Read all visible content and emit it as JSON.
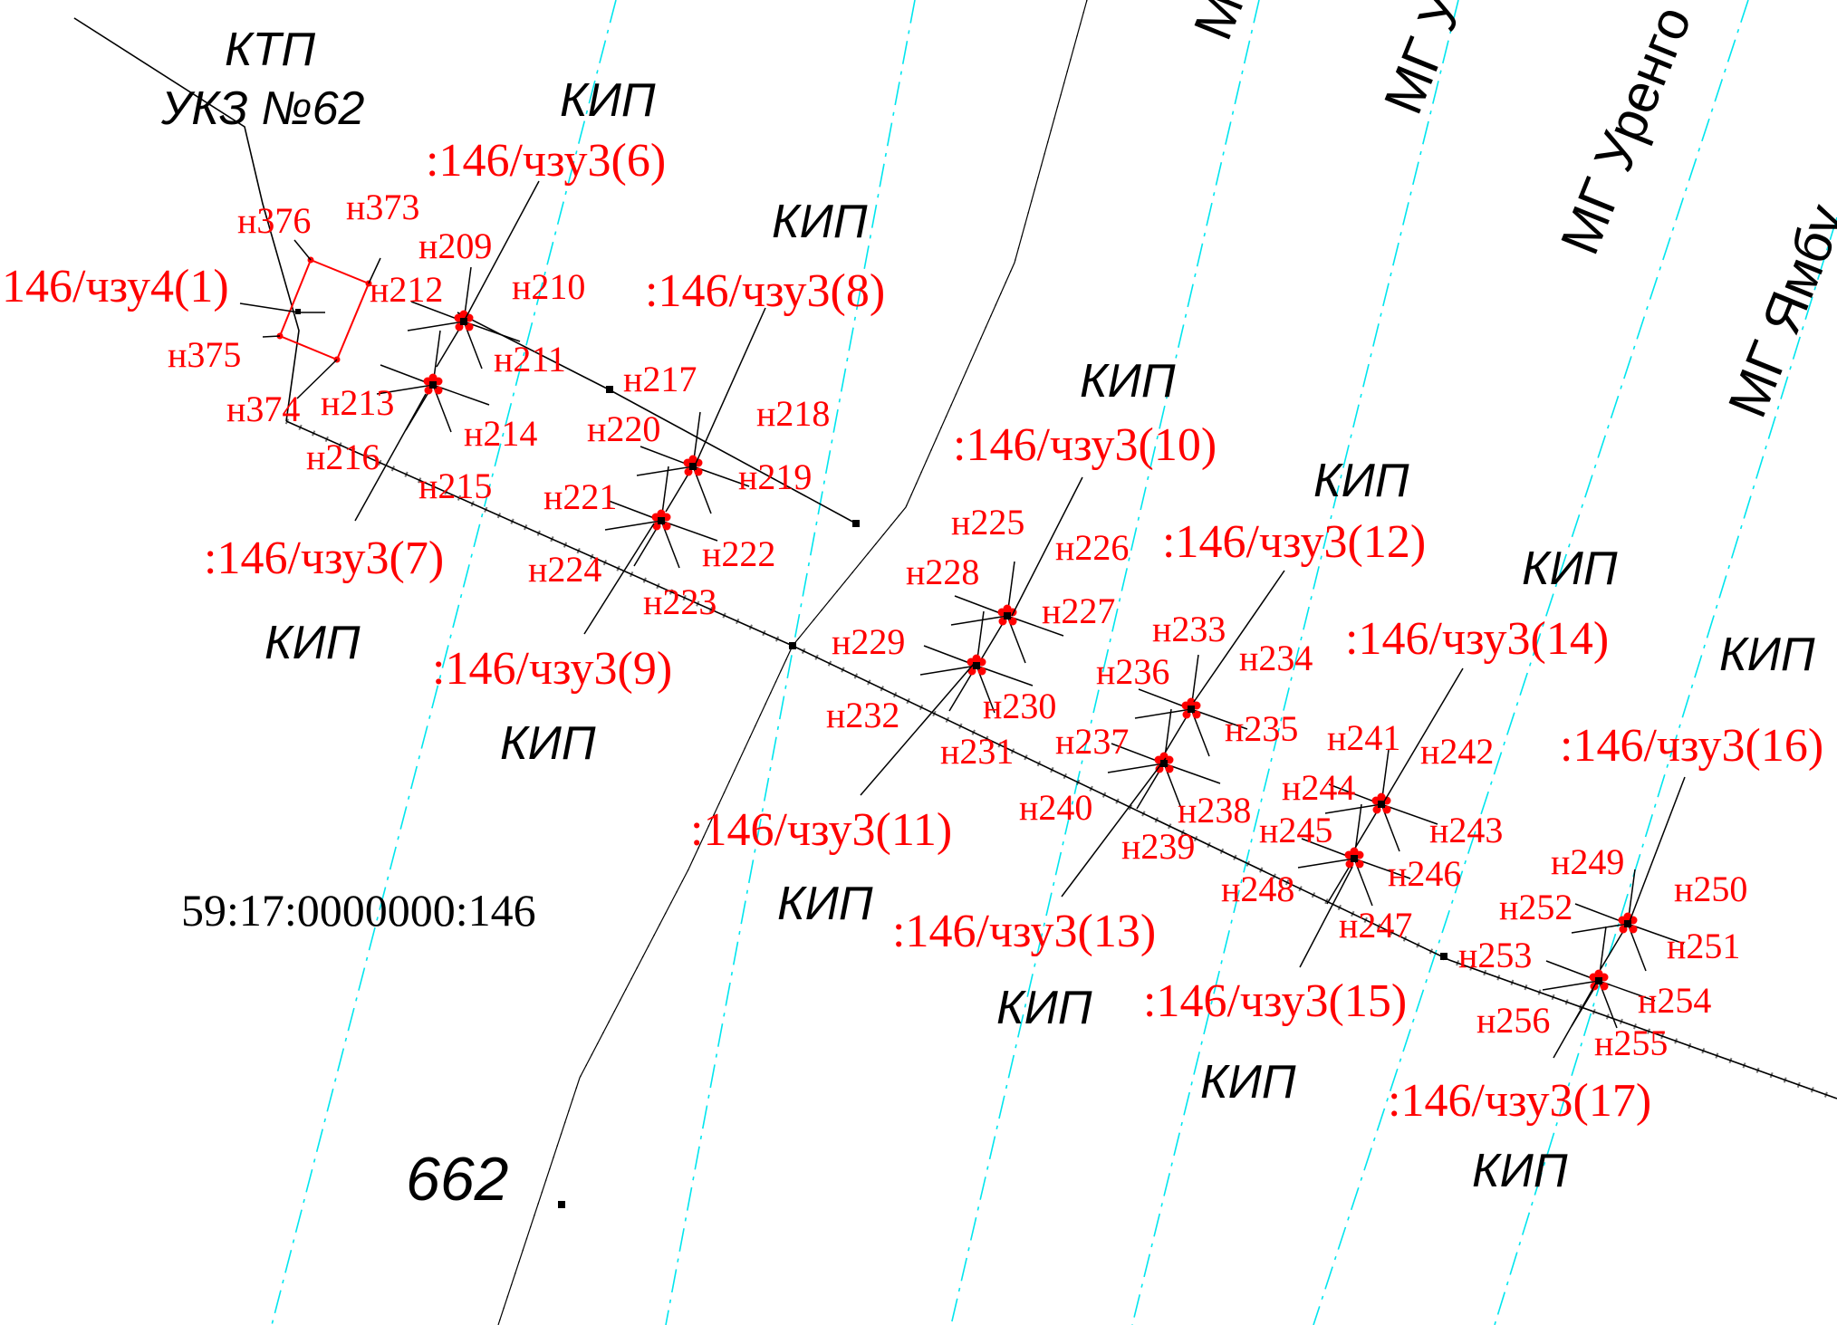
{
  "map": {
    "header_labels": {
      "ktp": "КТП",
      "ukz": "УКЗ №62"
    },
    "cadastral_number": "59:17:0000000:146",
    "parcel_number": "662",
    "pipelines": [
      {
        "id": "mg1",
        "label": "М"
      },
      {
        "id": "mg2",
        "label": "МГ У"
      },
      {
        "id": "mg3",
        "label": "МГ Уренго"
      },
      {
        "id": "mg4",
        "label": "МГ Ямбу"
      }
    ],
    "kip_label": "КИП",
    "zone_labels": {
      "z4_1": "146/чзу4(1)",
      "z3_6": ":146/чзу3(6)",
      "z3_7": ":146/чзу3(7)",
      "z3_8": ":146/чзу3(8)",
      "z3_9": ":146/чзу3(9)",
      "z3_10": ":146/чзу3(10)",
      "z3_11": ":146/чзу3(11)",
      "z3_12": ":146/чзу3(12)",
      "z3_13": ":146/чзу3(13)",
      "z3_14": ":146/чзу3(14)",
      "z3_15": ":146/чзу3(15)",
      "z3_16": ":146/чзу3(16)",
      "z3_17": ":146/чзу3(17)"
    },
    "point_labels": {
      "n373": "н373",
      "n374": "н374",
      "n375": "н375",
      "n376": "н376",
      "n209": "н209",
      "n210": "н210",
      "n211": "н211",
      "n212": "н212",
      "n213": "н213",
      "n214": "н214",
      "n215": "н215",
      "n216": "н216",
      "n217": "н217",
      "n218": "н218",
      "n219": "н219",
      "n220": "н220",
      "n221": "н221",
      "n222": "н222",
      "n223": "н223",
      "n224": "н224",
      "n225": "н225",
      "n226": "н226",
      "n227": "н227",
      "n228": "н228",
      "n229": "н229",
      "n230": "н230",
      "n231": "н231",
      "n232": "н232",
      "n233": "н233",
      "n234": "н234",
      "n235": "н235",
      "n236": "н236",
      "n237": "н237",
      "n238": "н238",
      "n239": "н239",
      "n240": "н240",
      "n241": "н241",
      "n242": "н242",
      "n243": "н243",
      "n244": "н244",
      "n245": "н245",
      "n246": "н246",
      "n247": "н247",
      "n248": "н248",
      "n249": "н249",
      "n250": "н250",
      "n251": "н251",
      "n252": "н252",
      "n253": "н253",
      "n254": "н254",
      "n255": "н255",
      "n256": "н256"
    },
    "colors": {
      "label_red": "#ff0000",
      "pipeline_axis_cyan": "#00e5ee",
      "line_black": "#000000"
    }
  }
}
